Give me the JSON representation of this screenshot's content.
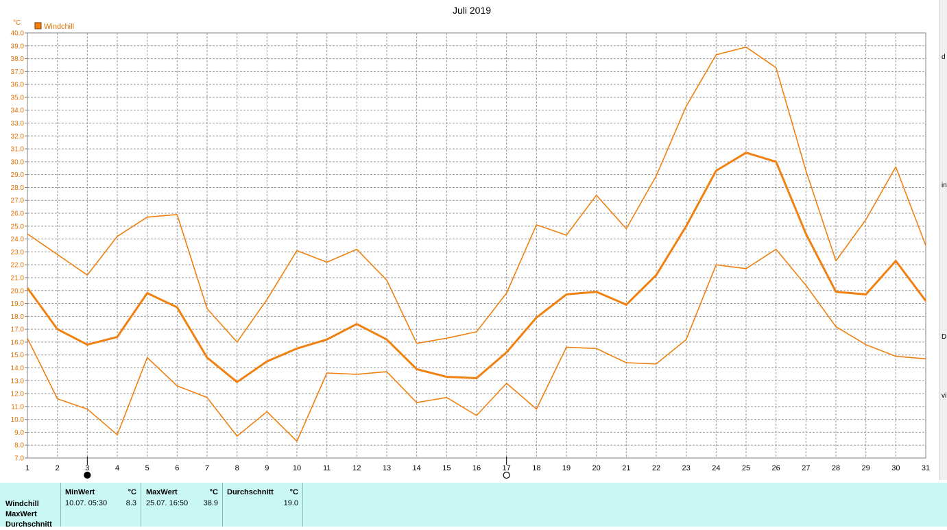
{
  "chart_data": {
    "type": "line",
    "title": "Juli 2019",
    "ylabel": "°C",
    "xlabel": "",
    "legend": {
      "placement": "top-left",
      "entries": [
        "Windchill"
      ]
    },
    "x": [
      1,
      2,
      3,
      4,
      5,
      6,
      7,
      8,
      9,
      10,
      11,
      12,
      13,
      14,
      15,
      16,
      17,
      18,
      19,
      20,
      21,
      22,
      23,
      24,
      25,
      26,
      27,
      28,
      29,
      30,
      31
    ],
    "ylim": [
      7.0,
      40.0
    ],
    "y_ticks": [
      "7.0",
      "8.0",
      "9.0",
      "10.0",
      "11.0",
      "12.0",
      "13.0",
      "14.0",
      "15.0",
      "16.0",
      "17.0",
      "18.0",
      "19.0",
      "20.0",
      "21.0",
      "22.0",
      "23.0",
      "24.0",
      "25.0",
      "26.0",
      "27.0",
      "28.0",
      "29.0",
      "30.0",
      "31.0",
      "32.0",
      "33.0",
      "34.0",
      "35.0",
      "36.0",
      "37.0",
      "38.0",
      "39.0",
      "40.0"
    ],
    "grid": true,
    "color": "#f08010",
    "series": [
      {
        "name": "MaxWert",
        "values": [
          24.4,
          22.8,
          21.2,
          24.2,
          25.7,
          25.9,
          18.6,
          16.0,
          19.3,
          23.1,
          22.2,
          23.2,
          20.8,
          15.9,
          16.3,
          16.8,
          19.8,
          25.1,
          24.3,
          27.4,
          24.8,
          28.9,
          34.3,
          38.3,
          38.9,
          37.3,
          29.3,
          22.3,
          25.5,
          29.6,
          23.5
        ]
      },
      {
        "name": "Durchschnitt",
        "values": [
          20.2,
          17.0,
          15.8,
          16.4,
          19.8,
          18.7,
          14.8,
          12.9,
          14.5,
          15.5,
          16.2,
          17.4,
          16.2,
          13.9,
          13.3,
          13.2,
          15.2,
          17.9,
          19.7,
          19.9,
          18.9,
          21.2,
          25.0,
          29.3,
          30.7,
          30.0,
          24.4,
          19.9,
          19.7,
          22.3,
          19.2
        ]
      },
      {
        "name": "MinWert",
        "values": [
          16.3,
          11.6,
          10.8,
          8.8,
          14.8,
          12.6,
          11.7,
          8.7,
          10.6,
          8.3,
          13.6,
          13.5,
          13.7,
          11.3,
          11.7,
          10.3,
          12.8,
          10.8,
          15.6,
          15.5,
          14.4,
          14.3,
          16.2,
          22.0,
          21.7,
          23.2,
          20.4,
          17.2,
          15.8,
          14.9,
          14.7
        ]
      }
    ],
    "moon_markers": [
      {
        "day": 3,
        "phase": "full"
      },
      {
        "day": 17,
        "phase": "new"
      }
    ]
  },
  "summary": {
    "row_labels": [
      "Windchill",
      "MaxWert",
      "Durchschnitt"
    ],
    "min": {
      "header": "MinWert",
      "unit": "°C",
      "datetime": "10.07.  05:30",
      "value": "8.3"
    },
    "max": {
      "header": "MaxWert",
      "unit": "°C",
      "datetime": "25.07.  16:50",
      "value": "38.9"
    },
    "avg": {
      "header": "Durchschnitt",
      "unit": "°C",
      "value": "19.0"
    }
  },
  "right_edge_letters": [
    "d",
    "in",
    "D",
    "vi"
  ]
}
